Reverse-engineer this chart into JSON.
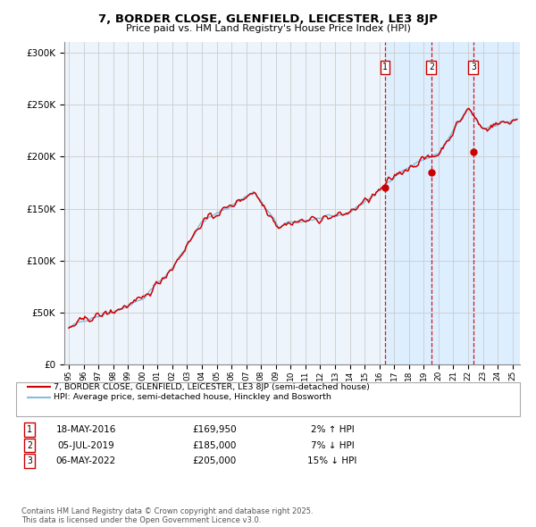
{
  "title": "7, BORDER CLOSE, GLENFIELD, LEICESTER, LE3 8JP",
  "subtitle": "Price paid vs. HM Land Registry's House Price Index (HPI)",
  "legend_house": "7, BORDER CLOSE, GLENFIELD, LEICESTER, LE3 8JP (semi-detached house)",
  "legend_hpi": "HPI: Average price, semi-detached house, Hinckley and Bosworth",
  "footnote": "Contains HM Land Registry data © Crown copyright and database right 2025.\nThis data is licensed under the Open Government Licence v3.0.",
  "sale_dates": [
    "18-MAY-2016",
    "05-JUL-2019",
    "06-MAY-2022"
  ],
  "sale_prices": [
    169950,
    185000,
    205000
  ],
  "sale_hpi_pct": [
    "2% ↑ HPI",
    "7% ↓ HPI",
    "15% ↓ HPI"
  ],
  "sale_years": [
    2016.38,
    2019.51,
    2022.35
  ],
  "house_color": "#cc0000",
  "hpi_color": "#88bbdd",
  "sale_marker_color": "#cc0000",
  "dashed_line_color": "#cc0000",
  "chart_bg": "#eef4fb",
  "grid_color": "#cccccc",
  "ylim": [
    0,
    310000
  ],
  "xlim_start": 1994.7,
  "xlim_end": 2025.5,
  "shade_start": 2016.38,
  "yticks": [
    0,
    50000,
    100000,
    150000,
    200000,
    250000,
    300000
  ],
  "ytick_labels": [
    "£0",
    "£50K",
    "£100K",
    "£150K",
    "£200K",
    "£250K",
    "£300K"
  ]
}
